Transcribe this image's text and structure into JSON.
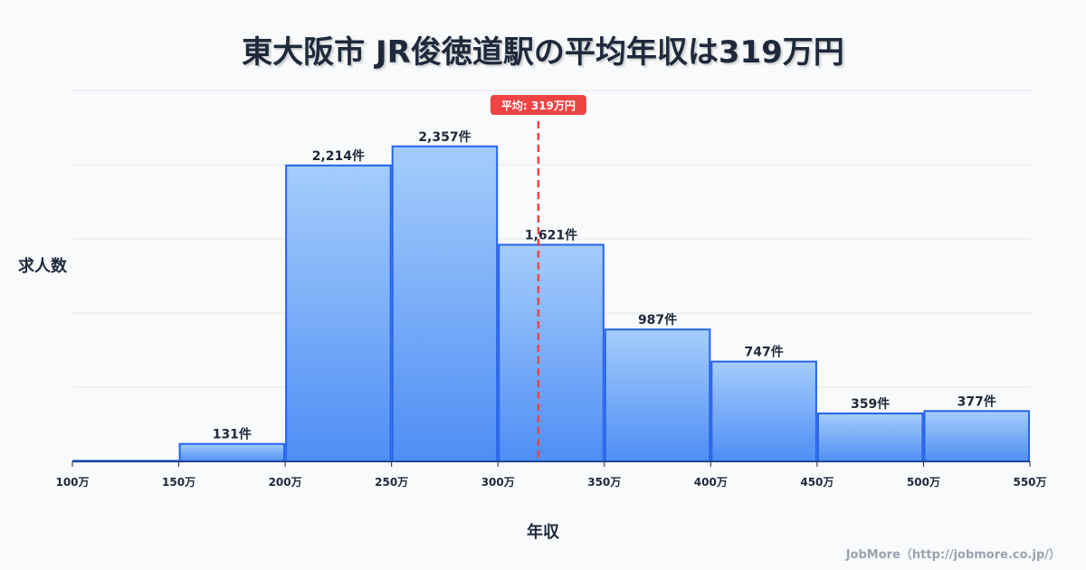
{
  "chart_data": {
    "type": "bar",
    "title": "東大阪市 JR俊徳道駅の平均年収は319万円",
    "xlabel": "年収",
    "ylabel": "求人数",
    "bin_edges": [
      100,
      150,
      200,
      250,
      300,
      350,
      400,
      450,
      500,
      550
    ],
    "tick_labels": [
      "100万",
      "150万",
      "200万",
      "250万",
      "300万",
      "350万",
      "400万",
      "450万",
      "500万",
      "550万"
    ],
    "values": [
      5,
      131,
      2214,
      2357,
      1621,
      987,
      747,
      359,
      377
    ],
    "value_labels": [
      null,
      "131件",
      "2,214件",
      "2,357件",
      "1,621件",
      "987件",
      "747件",
      "359件",
      "377件"
    ],
    "ylim": [
      0,
      2775
    ],
    "xlim": [
      100,
      550
    ],
    "grid": true,
    "mean": 319,
    "mean_label": "平均: 319万円",
    "colors": {
      "bar_top": "#a5cdfb",
      "bar_bottom": "#4f8ef5",
      "bar_stroke": "#2563eb",
      "mean": "#ef4444"
    }
  },
  "credit": "JobMore（http://jobmore.co.jp/）"
}
